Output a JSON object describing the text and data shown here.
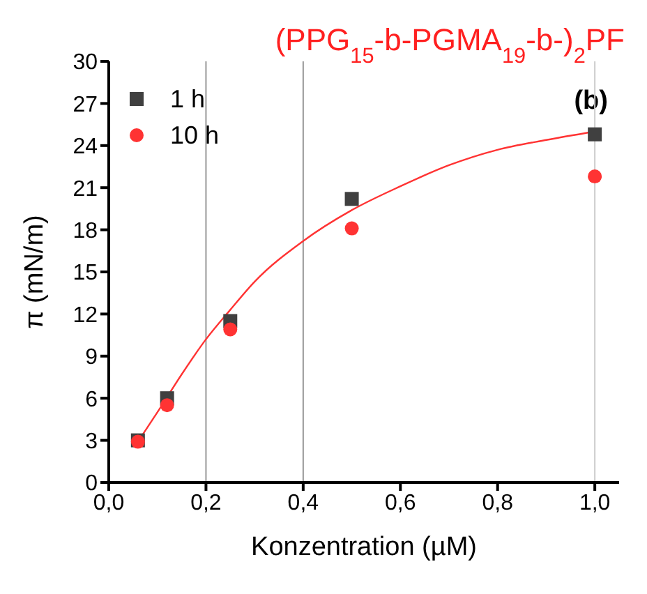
{
  "chart_data": {
    "type": "scatter",
    "title": "(PPG$_{15}$-b-PGMA$_{19}$-b-)$_{2}$PF",
    "xlabel": "Konzentration (µM)",
    "ylabel": "π (mN/m)",
    "annotations": [
      "(b)"
    ],
    "x": [
      0.06,
      0.12,
      0.25,
      0.5,
      1.0
    ],
    "series": [
      {
        "name": "1 h",
        "color": "#404040",
        "marker": "square",
        "values": [
          3.0,
          6.0,
          11.5,
          20.2,
          24.8
        ]
      },
      {
        "name": "10 h",
        "color": "#ff3333",
        "marker": "circle",
        "values": [
          2.9,
          5.5,
          10.9,
          18.1,
          21.8
        ]
      },
      {
        "type": "line",
        "color": "#ff3333",
        "marker": "none",
        "x": [
          0.06,
          0.1,
          0.15,
          0.2,
          0.25,
          0.3,
          0.4,
          0.5,
          0.6,
          0.7,
          0.8,
          0.9,
          1.0
        ],
        "values": [
          2.9,
          5.0,
          7.7,
          10.2,
          12.3,
          14.3,
          17.2,
          19.4,
          21.1,
          22.6,
          23.7,
          24.4,
          25.0
        ]
      }
    ],
    "xlim": [
      0,
      1.05
    ],
    "ylim": [
      0,
      30
    ],
    "xticks": [
      {
        "value": 0,
        "label": "0,0"
      },
      {
        "value": 0.2,
        "label": "0,2"
      },
      {
        "value": 0.4,
        "label": "0,4"
      },
      {
        "value": 0.6,
        "label": "0,6"
      },
      {
        "value": 0.8,
        "label": "0,8"
      },
      {
        "value": 1.0,
        "label": "1,0"
      }
    ],
    "yticks": [
      0,
      3,
      6,
      9,
      12,
      15,
      18,
      21,
      24,
      27,
      30
    ],
    "ref_lines": [
      {
        "axis": "x",
        "value": 0.2,
        "color": "#999999"
      },
      {
        "axis": "x",
        "value": 0.4,
        "color": "#999999"
      },
      {
        "axis": "x",
        "value": 1.0,
        "color": "#cccccc"
      }
    ],
    "grid": false,
    "legend": "top left"
  }
}
